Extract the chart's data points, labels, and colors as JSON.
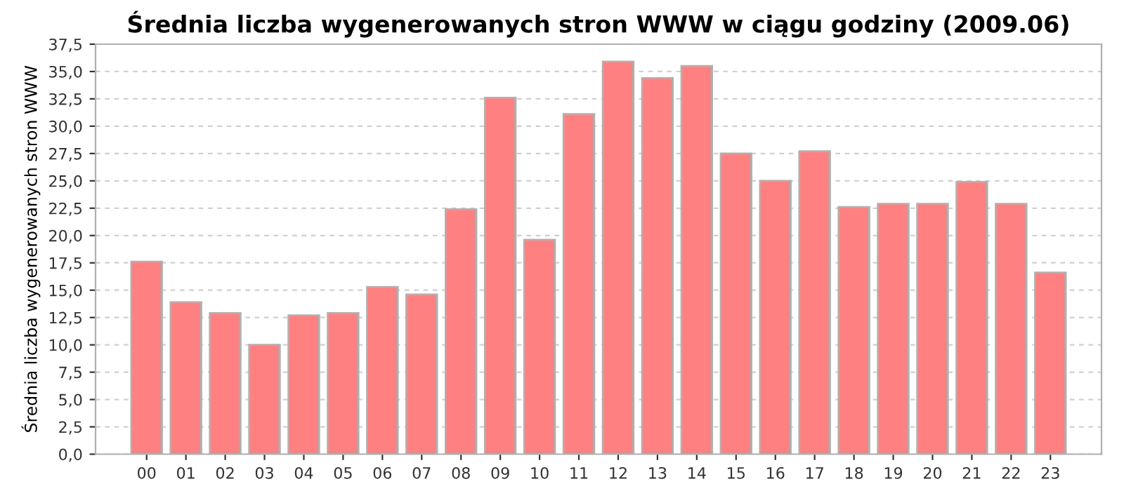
{
  "chart_data": {
    "type": "bar",
    "title": "Średnia liczba wygenerowanych stron WWW w ciągu godziny (2009.06)",
    "ylabel": "Średnia liczba wygenerowanych stron WWW",
    "categories": [
      "00",
      "01",
      "02",
      "03",
      "04",
      "05",
      "06",
      "07",
      "08",
      "09",
      "10",
      "11",
      "12",
      "13",
      "14",
      "15",
      "16",
      "17",
      "18",
      "19",
      "20",
      "21",
      "22",
      "23"
    ],
    "values": [
      17.6,
      13.9,
      12.9,
      10.0,
      12.7,
      12.9,
      15.3,
      14.6,
      22.4,
      32.6,
      19.6,
      31.1,
      35.9,
      34.4,
      35.5,
      27.5,
      25.0,
      27.7,
      22.6,
      22.9,
      22.9,
      24.9,
      22.9,
      16.6
    ],
    "color": "#ff8080",
    "ylim": [
      0,
      37.5
    ],
    "yticks": [
      {
        "value": 0,
        "label": "0,0"
      },
      {
        "value": 2.5,
        "label": "2,5"
      },
      {
        "value": 5,
        "label": "5,0"
      },
      {
        "value": 7.5,
        "label": "7,5"
      },
      {
        "value": 10,
        "label": "10,0"
      },
      {
        "value": 12.5,
        "label": "12,5"
      },
      {
        "value": 15,
        "label": "15,0"
      },
      {
        "value": 17.5,
        "label": "17,5"
      },
      {
        "value": 20,
        "label": "20,0"
      },
      {
        "value": 22.5,
        "label": "22,5"
      },
      {
        "value": 25,
        "label": "25,0"
      },
      {
        "value": 27.5,
        "label": "27,5"
      },
      {
        "value": 30,
        "label": "30,0"
      },
      {
        "value": 32.5,
        "label": "32,5"
      },
      {
        "value": 35,
        "label": "35,0"
      },
      {
        "value": 37.5,
        "label": "37,5"
      }
    ],
    "grid": "y"
  }
}
